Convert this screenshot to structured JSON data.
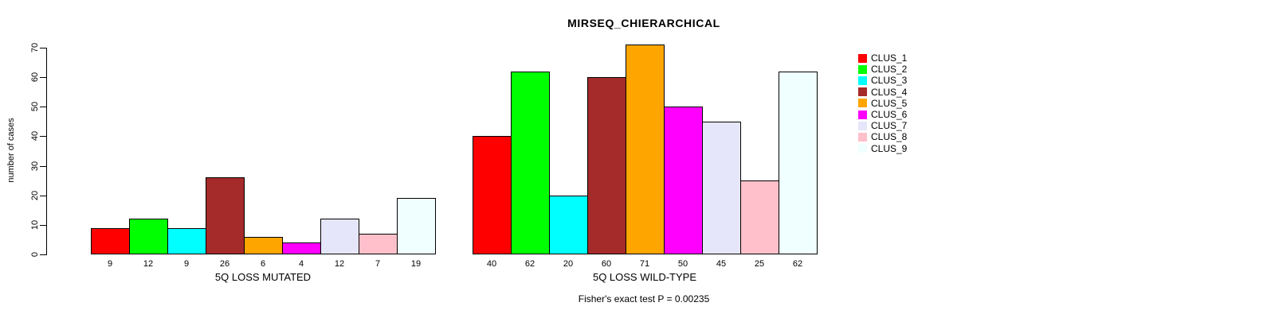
{
  "chart_data": {
    "type": "bar",
    "title": "MIRSEQ_CHIERARCHICAL",
    "ylabel": "number of cases",
    "ylim": [
      0,
      70
    ],
    "yticks": [
      0,
      10,
      20,
      30,
      40,
      50,
      60,
      70
    ],
    "grid": false,
    "legend_position": "right",
    "series_labels": [
      "CLUS_1",
      "CLUS_2",
      "CLUS_3",
      "CLUS_4",
      "CLUS_5",
      "CLUS_6",
      "CLUS_7",
      "CLUS_8",
      "CLUS_9"
    ],
    "colors": [
      "#FF0000",
      "#00FF00",
      "#00FFFF",
      "#A52A2A",
      "#FFA500",
      "#FF00FF",
      "#E6E6FA",
      "#FFC0CB",
      "#F0FFFF"
    ],
    "groups": [
      {
        "label": "5Q LOSS MUTATED",
        "values": [
          9,
          12,
          9,
          26,
          6,
          4,
          12,
          7,
          19
        ]
      },
      {
        "label": "5Q LOSS WILD-TYPE",
        "values": [
          40,
          62,
          20,
          60,
          71,
          50,
          45,
          25,
          62
        ]
      }
    ],
    "footnote": "Fisher's exact test P = 0.00235"
  }
}
